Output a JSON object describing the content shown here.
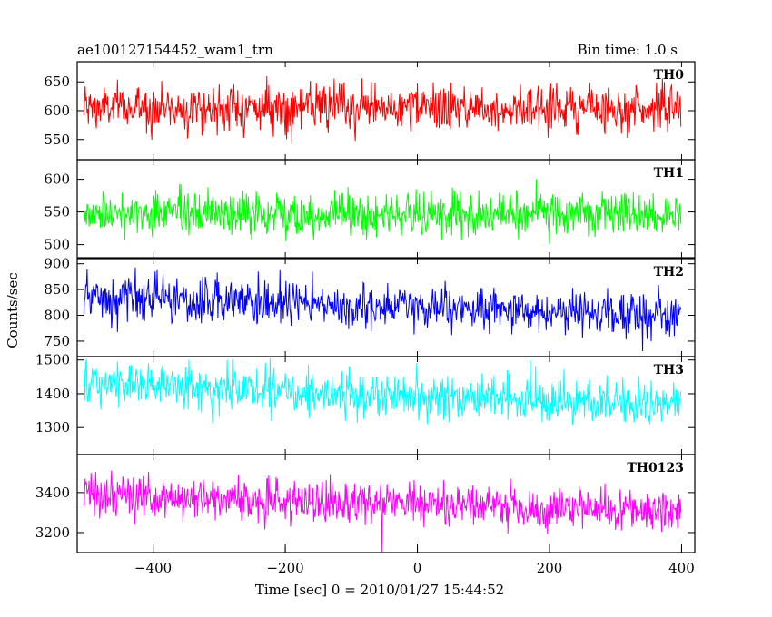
{
  "chart_data": {
    "type": "line",
    "title": "ae100127154452_wam1_trn",
    "subtitle": "Bin time: 1.0 s",
    "xlabel": "Time [sec] 0 = 2010/01/27 15:44:52",
    "ylabel": "Counts/sec",
    "xlim": [
      -515,
      420
    ],
    "x_ticks": [
      -400,
      -200,
      0,
      200,
      400
    ],
    "x_tick_labels": [
      "−400",
      "−200",
      "0",
      "200",
      "400"
    ],
    "x_range": [
      -505,
      399
    ],
    "bin_time_s": 1.0,
    "grid": false,
    "legend": "none",
    "series": [
      {
        "name": "TH0",
        "color": "#ff0000",
        "ylim": [
          515,
          685
        ],
        "y_ticks": [
          550,
          600,
          650
        ],
        "y_tick_labels": [
          "550",
          "600",
          "650"
        ],
        "mean_start": 605,
        "mean_end": 605,
        "spread": 20
      },
      {
        "name": "TH1",
        "color": "#00ff00",
        "ylim": [
          480,
          630
        ],
        "y_ticks": [
          500,
          550,
          600
        ],
        "y_tick_labels": [
          "500",
          "550",
          "600"
        ],
        "mean_start": 548,
        "mean_end": 545,
        "spread": 17
      },
      {
        "name": "TH2",
        "color": "#0000ff",
        "ylim": [
          720,
          910
        ],
        "y_ticks": [
          750,
          800,
          850,
          900
        ],
        "y_tick_labels": [
          "750",
          "800",
          "850",
          "900"
        ],
        "mean_start": 832,
        "mean_end": 800,
        "spread": 22
      },
      {
        "name": "TH3",
        "color": "#00ffff",
        "ylim": [
          1220,
          1510
        ],
        "y_ticks": [
          1300,
          1400,
          1500
        ],
        "y_tick_labels": [
          "1300",
          "1400",
          "1500"
        ],
        "mean_start": 1430,
        "mean_end": 1365,
        "spread": 33
      },
      {
        "name": "TH0123",
        "color": "#ff00ff",
        "ylim": [
          3100,
          3590
        ],
        "y_ticks": [
          3200,
          3400
        ],
        "y_tick_labels": [
          "3200",
          "3400"
        ],
        "mean_start": 3390,
        "mean_end": 3300,
        "spread": 55
      }
    ]
  }
}
